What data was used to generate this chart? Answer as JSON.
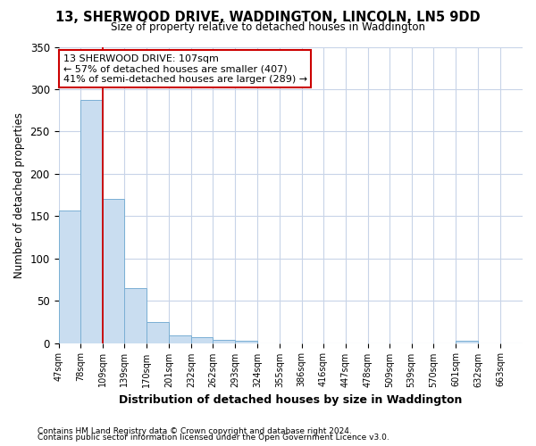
{
  "title1": "13, SHERWOOD DRIVE, WADDINGTON, LINCOLN, LN5 9DD",
  "title2": "Size of property relative to detached houses in Waddington",
  "xlabel": "Distribution of detached houses by size in Waddington",
  "ylabel": "Number of detached properties",
  "bin_edges": [
    47,
    78,
    109,
    139,
    170,
    201,
    232,
    262,
    293,
    324,
    355,
    386,
    416,
    447,
    478,
    509,
    539,
    570,
    601,
    632,
    663
  ],
  "bar_heights": [
    157,
    287,
    170,
    65,
    25,
    9,
    7,
    4,
    3,
    0,
    0,
    0,
    0,
    0,
    0,
    0,
    0,
    0,
    3,
    0
  ],
  "bar_color": "#c9ddf0",
  "bar_edge_color": "#7aafd4",
  "grid_color": "#c8d4e8",
  "property_line_x": 109,
  "annotation_lines": [
    "13 SHERWOOD DRIVE: 107sqm",
    "← 57% of detached houses are smaller (407)",
    "41% of semi-detached houses are larger (289) →"
  ],
  "annotation_box_color": "#ffffff",
  "annotation_box_edge_color": "#cc0000",
  "ylim": [
    0,
    350
  ],
  "yticks": [
    0,
    50,
    100,
    150,
    200,
    250,
    300,
    350
  ],
  "footer1": "Contains HM Land Registry data © Crown copyright and database right 2024.",
  "footer2": "Contains public sector information licensed under the Open Government Licence v3.0.",
  "bg_color": "#ffffff",
  "plot_bg_color": "#ffffff"
}
